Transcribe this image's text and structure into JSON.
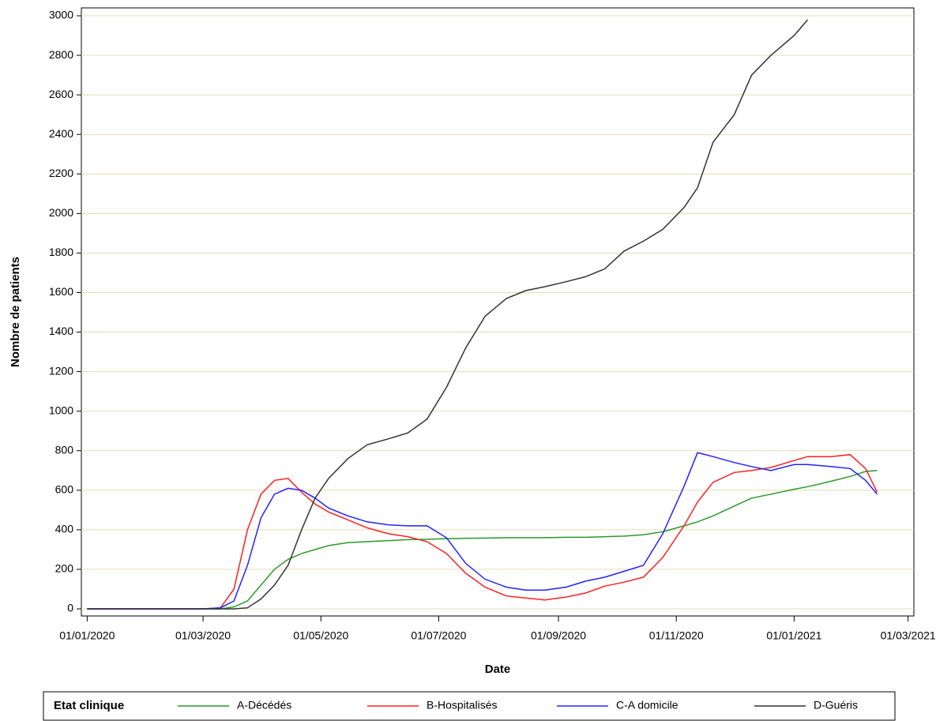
{
  "chart_data": {
    "type": "line",
    "xlabel": "Date",
    "ylabel": "Nombre de patients",
    "legend_title": "Etat clinique",
    "legend_position": "bottom",
    "grid": true,
    "grid_color": "#e6dcb4",
    "x": [
      "2020-01-01",
      "2020-03-01",
      "2020-03-10",
      "2020-03-17",
      "2020-03-24",
      "2020-03-31",
      "2020-04-07",
      "2020-04-14",
      "2020-04-21",
      "2020-04-28",
      "2020-05-05",
      "2020-05-15",
      "2020-05-25",
      "2020-06-05",
      "2020-06-15",
      "2020-06-25",
      "2020-07-05",
      "2020-07-15",
      "2020-07-25",
      "2020-08-05",
      "2020-08-15",
      "2020-08-25",
      "2020-09-05",
      "2020-09-15",
      "2020-09-25",
      "2020-10-05",
      "2020-10-15",
      "2020-10-25",
      "2020-11-05",
      "2020-11-12",
      "2020-11-20",
      "2020-12-01",
      "2020-12-10",
      "2020-12-20",
      "2021-01-01",
      "2021-01-08",
      "2021-01-20",
      "2021-01-30",
      "2021-02-07",
      "2021-02-13"
    ],
    "series": [
      {
        "name": "A-Décédés",
        "color": "#2a9a2a",
        "values": [
          0,
          0,
          0,
          10,
          40,
          120,
          200,
          250,
          280,
          300,
          320,
          335,
          340,
          345,
          350,
          352,
          355,
          357,
          358,
          360,
          360,
          360,
          362,
          362,
          365,
          368,
          375,
          390,
          420,
          440,
          470,
          520,
          560,
          580,
          605,
          618,
          645,
          670,
          695,
          700
        ]
      },
      {
        "name": "B-Hospitalisés",
        "color": "#ff2020",
        "values": [
          0,
          0,
          5,
          100,
          400,
          580,
          650,
          660,
          590,
          530,
          490,
          450,
          410,
          380,
          365,
          340,
          280,
          180,
          110,
          65,
          55,
          45,
          60,
          80,
          115,
          135,
          160,
          260,
          420,
          540,
          640,
          690,
          700,
          715,
          750,
          770,
          770,
          780,
          710,
          590
        ]
      },
      {
        "name": "C-A domicile",
        "color": "#2222ff",
        "values": [
          0,
          0,
          5,
          40,
          220,
          460,
          580,
          610,
          600,
          560,
          510,
          470,
          440,
          425,
          420,
          420,
          360,
          230,
          150,
          110,
          95,
          95,
          110,
          140,
          160,
          190,
          220,
          380,
          620,
          790,
          770,
          740,
          720,
          700,
          730,
          730,
          720,
          710,
          650,
          580
        ]
      },
      {
        "name": "D-Guéris",
        "color": "#333333",
        "values": [
          0,
          0,
          0,
          0,
          5,
          50,
          120,
          220,
          400,
          560,
          660,
          760,
          830,
          860,
          890,
          960,
          1120,
          1320,
          1480,
          1570,
          1610,
          1630,
          1655,
          1680,
          1720,
          1810,
          1860,
          1920,
          2030,
          2130,
          2360,
          2500,
          2700,
          2800,
          2900,
          2980,
          null,
          null,
          null,
          null
        ]
      }
    ],
    "xlim": [
      "2019-12-29",
      "2021-03-04"
    ],
    "xticks": [
      {
        "value": "2020-01-01",
        "label": "01/01/2020"
      },
      {
        "value": "2020-03-01",
        "label": "01/03/2020"
      },
      {
        "value": "2020-05-01",
        "label": "01/05/2020"
      },
      {
        "value": "2020-07-01",
        "label": "01/07/2020"
      },
      {
        "value": "2020-09-01",
        "label": "01/09/2020"
      },
      {
        "value": "2020-11-01",
        "label": "01/11/2020"
      },
      {
        "value": "2021-01-01",
        "label": "01/01/2021"
      },
      {
        "value": "2021-03-01",
        "label": "01/03/2021"
      }
    ],
    "ylim": [
      -36,
      3040
    ],
    "yticks": [
      0,
      200,
      400,
      600,
      800,
      1000,
      1200,
      1400,
      1600,
      1800,
      2000,
      2200,
      2400,
      2600,
      2800,
      3000
    ]
  }
}
